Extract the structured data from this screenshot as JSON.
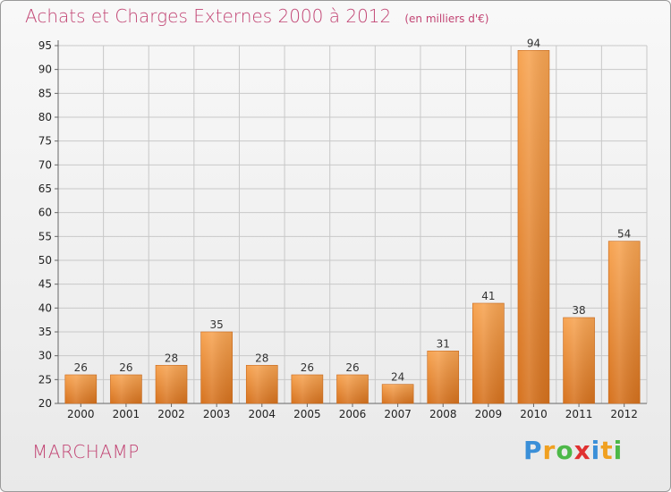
{
  "header": {
    "title": "Achats et Charges Externes 2000 à 2012",
    "units": "(en milliers d'€)"
  },
  "footer": {
    "commune": "MARCHAMP",
    "brand": "Proxiti",
    "brand_letters": [
      {
        "ch": "P",
        "color": "#3a8fd8"
      },
      {
        "ch": "r",
        "color": "#f0a020"
      },
      {
        "ch": "o",
        "color": "#4db848"
      },
      {
        "ch": "x",
        "color": "#e03030"
      },
      {
        "ch": "i",
        "color": "#3a8fd8"
      },
      {
        "ch": "t",
        "color": "#f0a020"
      },
      {
        "ch": "i",
        "color": "#4db848"
      }
    ]
  },
  "colors": {
    "bar_light": "#f7a452",
    "bar_dark": "#d6721e",
    "grid": "#c8c8c8",
    "title": "#c24574"
  },
  "chart_data": {
    "type": "bar",
    "categories": [
      "2000",
      "2001",
      "2002",
      "2003",
      "2004",
      "2005",
      "2006",
      "2007",
      "2008",
      "2009",
      "2010",
      "2011",
      "2012"
    ],
    "values": [
      26,
      26,
      28,
      35,
      28,
      26,
      26,
      24,
      31,
      41,
      94,
      38,
      54
    ],
    "title": "Achats et Charges Externes 2000 à 2012",
    "ylim": [
      20,
      95
    ],
    "yticks": [
      20,
      25,
      30,
      35,
      40,
      45,
      50,
      55,
      60,
      65,
      70,
      75,
      80,
      85,
      90,
      95
    ],
    "grid": true,
    "data_labels": true
  }
}
